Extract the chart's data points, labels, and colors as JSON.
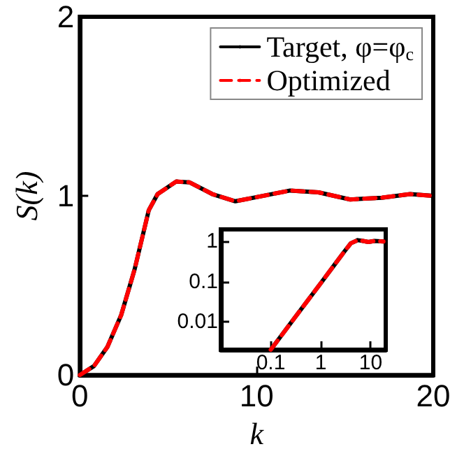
{
  "chart_data": [
    {
      "type": "line",
      "xlabel": "k",
      "ylabel": "S(k)",
      "xlim": [
        0,
        20
      ],
      "xticks": [
        0,
        10,
        20
      ],
      "ylim": [
        0,
        2
      ],
      "yticks": [
        0,
        1,
        2
      ],
      "grid": false,
      "marker": "none",
      "legend": "top right",
      "x": [
        0,
        0.8,
        1.56,
        2.34,
        3.1,
        3.9,
        4.4,
        5.45,
        6.2,
        7.5,
        8.8,
        10.1,
        11.9,
        13.5,
        15.3,
        17.1,
        18.7,
        20
      ],
      "series": [
        {
          "name": "Target, φ=φ$_{c}$",
          "color": "#000000",
          "line_style": "solid",
          "values": [
            0,
            0.05,
            0.157,
            0.335,
            0.59,
            0.92,
            1.01,
            1.08,
            1.076,
            1.01,
            0.97,
            0.995,
            1.03,
            1.02,
            0.98,
            0.99,
            1.01,
            1.0
          ]
        },
        {
          "name": "Optimized",
          "color": "#ff0000",
          "line_style": "dashed",
          "values": [
            0,
            0.05,
            0.157,
            0.335,
            0.59,
            0.92,
            1.01,
            1.08,
            1.076,
            1.01,
            0.97,
            0.995,
            1.03,
            1.02,
            0.98,
            0.99,
            1.01,
            1.0
          ]
        }
      ]
    },
    {
      "type": "line",
      "log": "xy",
      "xlim": [
        0.01,
        20
      ],
      "xticks": [
        0.1,
        1,
        10
      ],
      "ylim": [
        0.002,
        2
      ],
      "yticks": [
        0.01,
        0.1,
        1
      ],
      "grid": false,
      "marker": "none",
      "legend": false,
      "x": [
        0.1,
        0.3,
        1,
        2,
        3,
        4,
        5.5,
        7,
        9,
        12,
        18
      ],
      "series": [
        {
          "color": "#000000",
          "line_style": "solid",
          "values": [
            0.002,
            0.0124,
            0.091,
            0.29,
            0.57,
            0.9,
            1.08,
            1.03,
            0.97,
            1.03,
            1.0
          ]
        },
        {
          "color": "#ff0000",
          "line_style": "dashed",
          "values": [
            0.002,
            0.0124,
            0.091,
            0.29,
            0.57,
            0.9,
            1.08,
            1.03,
            0.97,
            1.03,
            1.0
          ]
        }
      ]
    }
  ]
}
